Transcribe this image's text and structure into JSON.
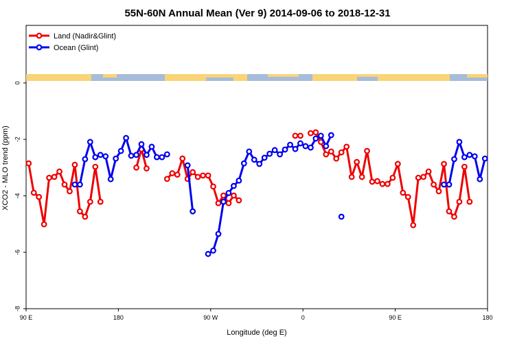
{
  "chart_data": {
    "type": "line",
    "title": "55N-60N Annual Mean (Ver 9)   2014-09-06 to 2018-12-31",
    "x_label": "Longitude (deg E)",
    "y_label": "XCO2 - MLO trend (ppm)",
    "x": [
      92.5,
      97.5,
      102.5,
      107.5,
      112.5,
      117.5,
      122.5,
      127.5,
      132.5,
      137.5,
      142.5,
      147.5,
      152.5,
      157.5,
      162.5,
      167.5,
      172.5,
      177.5,
      182.5,
      187.5,
      192.5,
      197.5,
      202.5,
      207.5,
      212.5,
      217.5,
      222.5,
      227.5,
      232.5,
      237.5,
      242.5,
      247.5,
      252.5,
      257.5,
      262.5,
      267.5,
      272.5,
      277.5,
      282.5,
      287.5,
      292.5,
      297.5,
      302.5,
      307.5,
      312.5,
      317.5,
      322.5,
      327.5,
      332.5,
      337.5,
      342.5,
      347.5,
      352.5,
      357.5,
      362.5,
      367.5,
      372.5,
      377.5,
      382.5,
      387.5,
      392.5,
      397.5,
      402.5,
      407.5,
      412.5,
      417.5,
      422.5,
      427.5,
      432.5,
      437.5,
      442.5,
      447.5,
      452.5,
      457.5,
      462.5,
      467.5,
      472.5,
      477.5,
      482.5,
      487.5,
      492.5,
      497.5,
      502.5,
      507.5,
      512.5,
      517.5,
      522.5,
      527.5,
      532.5,
      537.5
    ],
    "series": [
      {
        "name": "Land (Nadir&Glint)",
        "color": "#ee0000",
        "values": [
          -2.85,
          -3.89,
          -4.04,
          -5.01,
          -3.36,
          -3.33,
          -3.14,
          -3.6,
          -3.84,
          -2.9,
          -4.55,
          -4.74,
          -4.21,
          -2.97,
          -4.21,
          null,
          null,
          null,
          null,
          null,
          null,
          -3.0,
          -2.35,
          -3.03,
          null,
          null,
          null,
          -3.4,
          -3.2,
          -3.25,
          -2.68,
          -3.4,
          -3.16,
          -3.33,
          -3.28,
          -3.28,
          -3.67,
          -4.26,
          -3.99,
          -4.26,
          -3.99,
          -4.16,
          null,
          null,
          null,
          null,
          null,
          null,
          null,
          null,
          null,
          null,
          -1.87,
          -1.87,
          null,
          -1.78,
          -1.75,
          -2.09,
          -2.53,
          -2.43,
          -2.68,
          -2.46,
          -2.26,
          -3.33,
          -2.8,
          -3.33,
          -2.41,
          -3.5,
          -3.48,
          -3.58,
          -3.58,
          -3.36,
          -2.87,
          -3.89,
          -4.04,
          -5.04,
          -3.36,
          -3.33,
          -3.14,
          -3.6,
          -3.84,
          -2.87,
          -4.55,
          -4.74,
          -4.21,
          -2.97,
          -4.21,
          null,
          null,
          null
        ]
      },
      {
        "name": "Ocean (Glint)",
        "color": "#0000ee",
        "values": [
          null,
          null,
          null,
          null,
          null,
          null,
          null,
          null,
          null,
          -3.6,
          -3.6,
          -2.7,
          -2.09,
          -2.63,
          -2.55,
          -2.6,
          -3.41,
          -2.68,
          -2.41,
          -1.95,
          -2.58,
          -2.55,
          -2.17,
          -2.55,
          -2.26,
          -2.63,
          -2.63,
          -2.53,
          null,
          null,
          null,
          -2.92,
          -4.55,
          null,
          null,
          -6.06,
          -5.94,
          -5.35,
          -4.21,
          -3.9,
          -3.65,
          -3.46,
          -2.85,
          -2.43,
          -2.72,
          -2.87,
          -2.65,
          -2.51,
          -2.38,
          -2.53,
          -2.36,
          -2.19,
          -2.34,
          -2.14,
          -2.24,
          -2.29,
          -1.97,
          -1.87,
          -2.24,
          -1.85,
          null,
          -4.74,
          null,
          null,
          null,
          null,
          null,
          null,
          null,
          null,
          null,
          null,
          null,
          null,
          null,
          null,
          null,
          null,
          null,
          null,
          null,
          -3.6,
          -3.6,
          -2.7,
          -2.09,
          -2.63,
          -2.55,
          -2.6,
          -3.41,
          -2.68
        ]
      }
    ],
    "xlim": [
      90,
      540
    ],
    "xticks": [
      {
        "value": 90,
        "label": "90 E"
      },
      {
        "value": 180,
        "label": "180"
      },
      {
        "value": 270,
        "label": "90 W"
      },
      {
        "value": 360,
        "label": "0"
      },
      {
        "value": 450,
        "label": "90 E"
      },
      {
        "value": 540,
        "label": "180"
      }
    ],
    "ylim": [
      -8,
      2.04
    ],
    "yticks": [
      0,
      -2,
      -4,
      -6,
      -8
    ],
    "legend": "upper-left"
  }
}
